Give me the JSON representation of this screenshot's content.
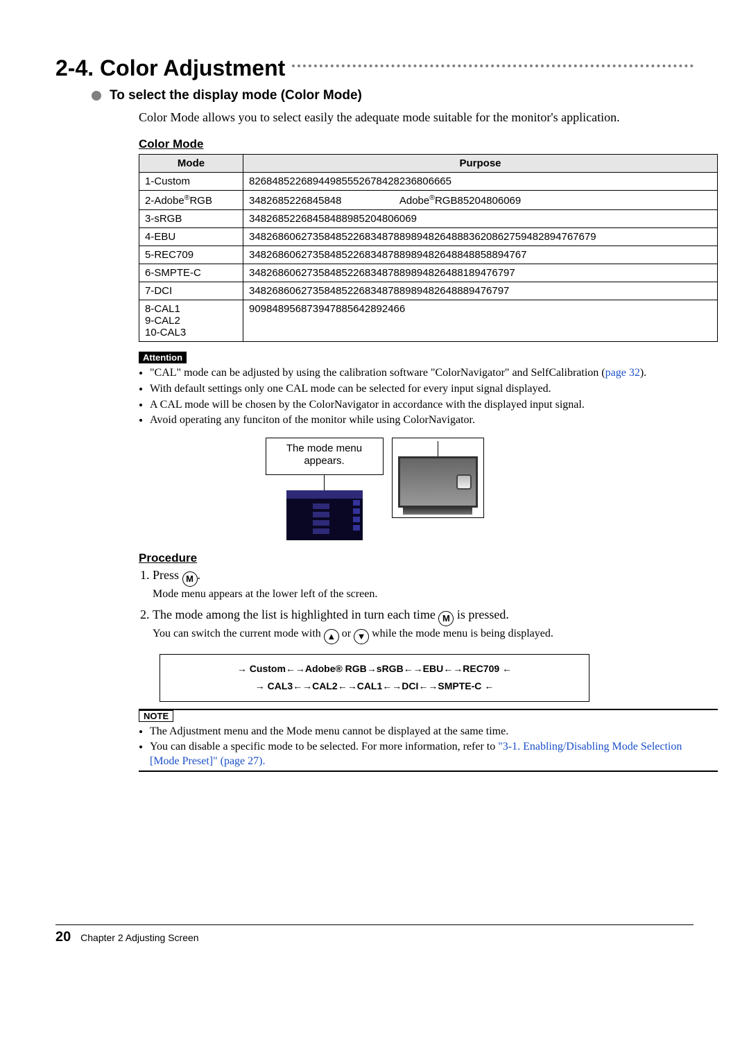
{
  "section": {
    "number": "2-4.",
    "title": "Color Adjustment"
  },
  "subsection": {
    "title": "To select the display mode (Color Mode)"
  },
  "intro": "Color Mode allows you to select easily the adequate mode suitable for the monitor's application.",
  "tableHead": "Color Mode",
  "columns": {
    "mode": "Mode",
    "purpose": "Purpose"
  },
  "table": [
    {
      "mode": "1-Custom",
      "purpose": "82684852268944985552678428236806665"
    },
    {
      "mode": "2-Adobe",
      "reg": "®",
      "mode2": "RGB",
      "purpose_a": "3482685226845848",
      "purpose_b": "Adobe",
      "purpose_reg": "®",
      "purpose_c": "RGB85204806069"
    },
    {
      "mode": "3-sRGB",
      "purpose": "34826852268458488985204806069"
    },
    {
      "mode": "4-EBU",
      "purpose": "348268606273584852268348788989482648883620862759482894767679"
    },
    {
      "mode": "5-REC709",
      "purpose": "348268606273584852268348788989482648848858894767"
    },
    {
      "mode": "6-SMPTE-C",
      "purpose": "3482686062735848522683487889894826488189476797"
    },
    {
      "mode": "7-DCI",
      "purpose": "348268606273584852268348788989482648889476797"
    },
    {
      "mode": "8-CAL1\n9-CAL2\n10-CAL3",
      "purpose": "909848956873947885642892466"
    }
  ],
  "attention": {
    "label": "Attention",
    "items": [
      {
        "pre": "\"CAL\" mode can be adjusted by using the calibration software \"ColorNavigator\" and SelfCalibration (",
        "link": "page 32",
        "post": ")."
      },
      {
        "text": "With default settings only one CAL mode can be selected for every input signal displayed."
      },
      {
        "text": "A CAL mode will be chosen by the ColorNavigator in accordance with the displayed input signal."
      },
      {
        "text": "Avoid operating any funciton of the monitor while using ColorNavigator."
      }
    ]
  },
  "diagram": {
    "bubble1": "The mode menu",
    "bubble2": "appears."
  },
  "procedure": {
    "head": "Procedure",
    "s1a": "Press ",
    "s1b": ".",
    "s1sub": "Mode menu appears at the lower left of the screen.",
    "s2a": "The mode among the list is highlighted in turn each time ",
    "s2b": " is pressed.",
    "s2sub_a": "You can switch the current mode with ",
    "s2sub_b": " or ",
    "s2sub_c": " while the mode menu is being displayed."
  },
  "cycle": {
    "line1": "→ Custom←→Adobe®  RGB→sRGB←→EBU←→REC709   ←",
    "line2": "→ CAL3←→CAL2←→CAL1←→DCI←→SMPTE-C   ←"
  },
  "note": {
    "label": "NOTE",
    "items": [
      {
        "text": "The Adjustment menu and the Mode menu cannot be displayed at the same time."
      },
      {
        "pre": "You can disable a specific mode to be selected. For more information, refer to ",
        "link": "\"3-1. Enabling/Disabling Mode Selection [Mode Preset]\" (page 27).",
        "post": ""
      }
    ]
  },
  "footer": {
    "page": "20",
    "chapter": "Chapter 2  Adjusting Screen"
  }
}
